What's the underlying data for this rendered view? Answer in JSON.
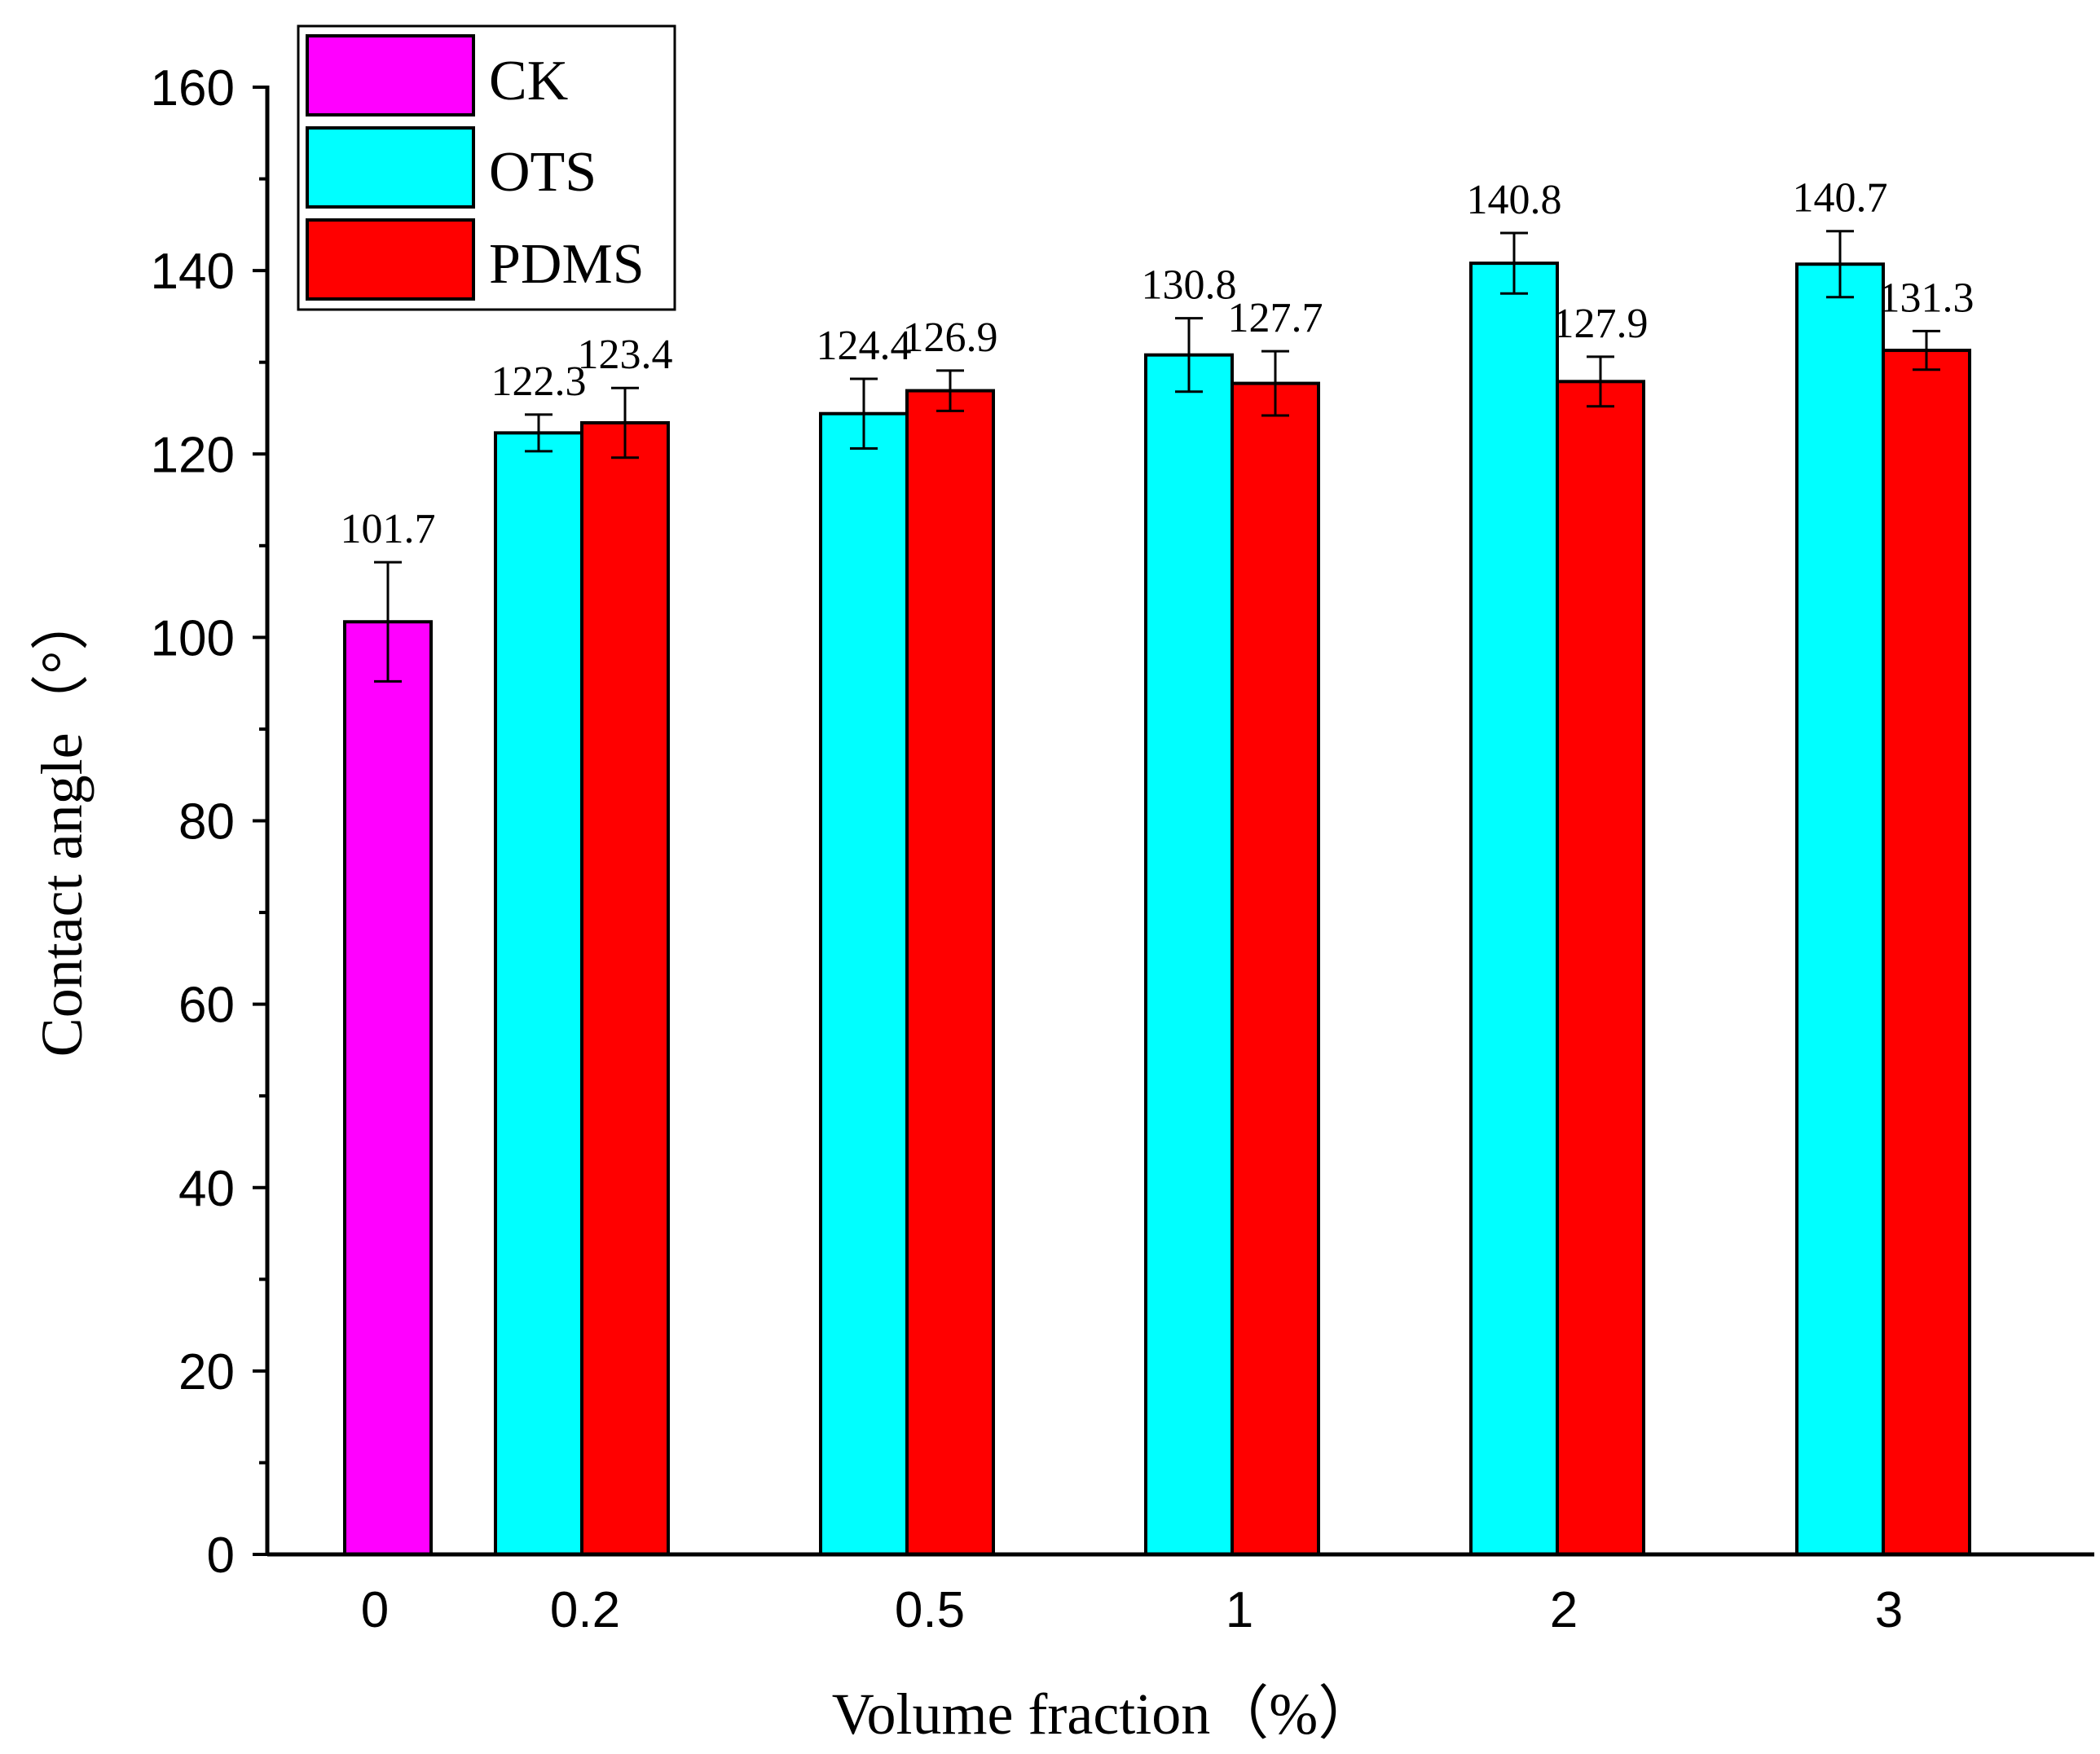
{
  "chart_data": {
    "type": "bar",
    "title": "",
    "xlabel": "Volume fraction（%）",
    "ylabel": "Contact angle（°）",
    "ylim": [
      0,
      160
    ],
    "yticks": [
      "0",
      "20",
      "40",
      "60",
      "80",
      "100",
      "120",
      "140",
      "160"
    ],
    "categories": [
      "0",
      "0.2",
      "0.5",
      "1",
      "2",
      "3"
    ],
    "series": [
      {
        "name": "CK",
        "color": "#ff00ff",
        "values": [
          101.7,
          null,
          null,
          null,
          null,
          null
        ],
        "errors": [
          6.5,
          null,
          null,
          null,
          null,
          null
        ],
        "labels": [
          "101.7",
          "",
          "",
          "",
          "",
          ""
        ]
      },
      {
        "name": "OTS",
        "color": "#00ffff",
        "values": [
          null,
          122.3,
          124.4,
          130.8,
          140.8,
          140.7
        ],
        "errors": [
          null,
          2.0,
          3.8,
          4.0,
          3.3,
          3.6
        ],
        "labels": [
          "",
          "122.3",
          "124.4",
          "130.8",
          "140.8",
          "140.7"
        ]
      },
      {
        "name": "PDMS",
        "color": "#ff0000",
        "values": [
          null,
          123.4,
          126.9,
          127.7,
          127.9,
          131.3
        ],
        "errors": [
          null,
          3.8,
          2.2,
          3.5,
          2.7,
          2.1
        ],
        "labels": [
          "",
          "123.4",
          "126.9",
          "127.7",
          "127.9",
          "131.3"
        ]
      }
    ],
    "legend": {
      "position": "top-left",
      "entries": [
        "CK",
        "OTS",
        "PDMS"
      ]
    },
    "grid": false
  }
}
